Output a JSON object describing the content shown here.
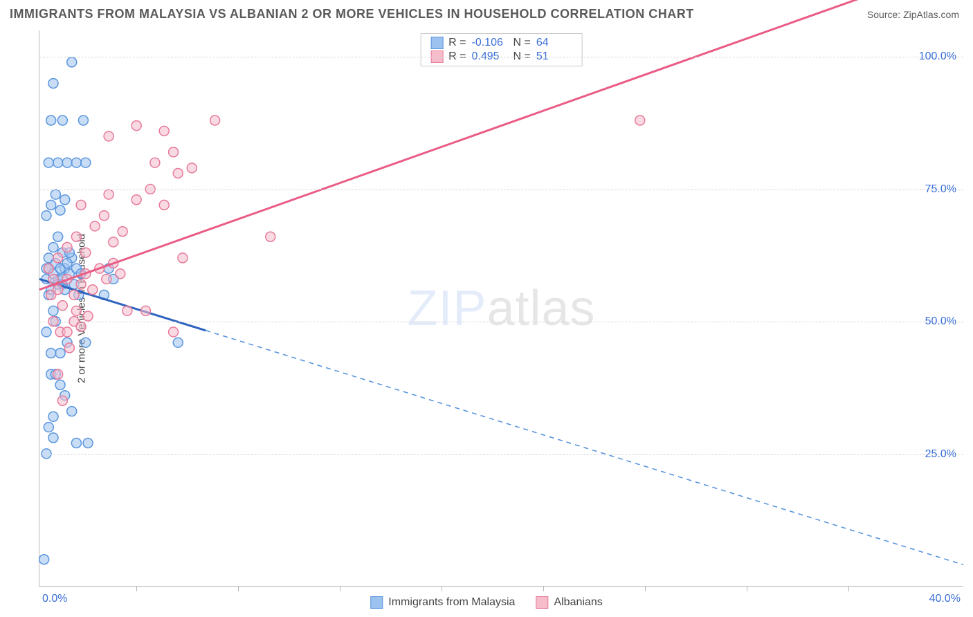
{
  "header": {
    "title": "IMMIGRANTS FROM MALAYSIA VS ALBANIAN 2 OR MORE VEHICLES IN HOUSEHOLD CORRELATION CHART",
    "source": "Source: ZipAtlas.com"
  },
  "chart": {
    "type": "scatter",
    "ylabel": "2 or more Vehicles in Household",
    "watermark": {
      "part1": "ZIP",
      "part2": "atlas"
    },
    "xlim": [
      0,
      40
    ],
    "ylim": [
      0,
      105
    ],
    "xtick_label_left": "0.0%",
    "xtick_label_right": "40.0%",
    "xtick_positions_pct": [
      10.5,
      21.5,
      32.5,
      43.5,
      54.5,
      65.5,
      76.5,
      87.5
    ],
    "ygrid": [
      {
        "v": 25,
        "label": "25.0%"
      },
      {
        "v": 50,
        "label": "50.0%"
      },
      {
        "v": 75,
        "label": "75.0%"
      },
      {
        "v": 100,
        "label": "100.0%"
      }
    ],
    "series": [
      {
        "name": "Immigrants from Malaysia",
        "color_fill": "#9cc2ef",
        "color_stroke": "#5a95de",
        "line_solid_color": "#2e63c0",
        "line_dash_color": "#5a95de",
        "marker_r": 7,
        "R": "-0.106",
        "N": "64",
        "trend": {
          "x1": 0,
          "y1": 58,
          "x2": 40,
          "y2": 4,
          "solid_until_x": 7.2
        },
        "points": [
          [
            1.4,
            99
          ],
          [
            0.6,
            32
          ],
          [
            0.3,
            60
          ],
          [
            0.5,
            40
          ],
          [
            0.9,
            44
          ],
          [
            1.2,
            46
          ],
          [
            2.0,
            46
          ],
          [
            0.4,
            55
          ],
          [
            0.6,
            52
          ],
          [
            0.7,
            50
          ],
          [
            0.8,
            58
          ],
          [
            1.0,
            57
          ],
          [
            1.1,
            60
          ],
          [
            1.3,
            59
          ],
          [
            0.4,
            62
          ],
          [
            0.6,
            64
          ],
          [
            0.8,
            66
          ],
          [
            1.0,
            63
          ],
          [
            1.4,
            62
          ],
          [
            1.6,
            60
          ],
          [
            1.8,
            59
          ],
          [
            0.3,
            70
          ],
          [
            0.5,
            72
          ],
          [
            0.7,
            74
          ],
          [
            0.9,
            71
          ],
          [
            1.1,
            73
          ],
          [
            0.4,
            80
          ],
          [
            0.8,
            80
          ],
          [
            1.2,
            80
          ],
          [
            1.6,
            80
          ],
          [
            2.0,
            80
          ],
          [
            0.5,
            88
          ],
          [
            1.0,
            88
          ],
          [
            1.9,
            88
          ],
          [
            0.6,
            95
          ],
          [
            0.3,
            48
          ],
          [
            0.5,
            44
          ],
          [
            0.7,
            40
          ],
          [
            0.9,
            38
          ],
          [
            1.1,
            36
          ],
          [
            0.4,
            30
          ],
          [
            0.6,
            28
          ],
          [
            0.3,
            25
          ],
          [
            1.6,
            27
          ],
          [
            2.1,
            27
          ],
          [
            1.4,
            33
          ],
          [
            2.8,
            55
          ],
          [
            3.0,
            60
          ],
          [
            3.2,
            58
          ],
          [
            0.2,
            5
          ],
          [
            0.3,
            58
          ],
          [
            0.4,
            60
          ],
          [
            0.5,
            56
          ],
          [
            0.6,
            59
          ],
          [
            0.7,
            61
          ],
          [
            0.8,
            57
          ],
          [
            0.9,
            60
          ],
          [
            1.0,
            58
          ],
          [
            1.1,
            56
          ],
          [
            1.2,
            61
          ],
          [
            1.3,
            63
          ],
          [
            1.5,
            57
          ],
          [
            1.7,
            55
          ],
          [
            6.0,
            46
          ]
        ]
      },
      {
        "name": "Albanians",
        "color_fill": "#f6bcca",
        "color_stroke": "#e77a9a",
        "line_solid_color": "#ea5c86",
        "line_dash_color": "#e77a9a",
        "marker_r": 7,
        "R": "0.495",
        "N": "51",
        "trend": {
          "x1": 0,
          "y1": 56,
          "x2": 40,
          "y2": 118,
          "solid_until_x": 40
        },
        "points": [
          [
            0.5,
            55
          ],
          [
            0.8,
            56
          ],
          [
            1.0,
            53
          ],
          [
            1.2,
            58
          ],
          [
            1.5,
            55
          ],
          [
            1.8,
            57
          ],
          [
            2.0,
            59
          ],
          [
            2.3,
            56
          ],
          [
            2.6,
            60
          ],
          [
            2.9,
            58
          ],
          [
            3.2,
            61
          ],
          [
            3.5,
            59
          ],
          [
            0.6,
            50
          ],
          [
            0.9,
            48
          ],
          [
            1.2,
            48
          ],
          [
            1.5,
            50
          ],
          [
            1.8,
            49
          ],
          [
            2.1,
            51
          ],
          [
            3.8,
            52
          ],
          [
            4.6,
            52
          ],
          [
            5.8,
            48
          ],
          [
            0.8,
            62
          ],
          [
            1.2,
            64
          ],
          [
            1.6,
            66
          ],
          [
            2.0,
            63
          ],
          [
            2.4,
            68
          ],
          [
            2.8,
            70
          ],
          [
            3.2,
            65
          ],
          [
            3.6,
            67
          ],
          [
            4.2,
            73
          ],
          [
            4.8,
            75
          ],
          [
            5.4,
            72
          ],
          [
            6.0,
            78
          ],
          [
            5.0,
            80
          ],
          [
            5.8,
            82
          ],
          [
            6.6,
            79
          ],
          [
            3.0,
            85
          ],
          [
            4.2,
            87
          ],
          [
            5.4,
            86
          ],
          [
            7.6,
            88
          ],
          [
            10.0,
            66
          ],
          [
            26.0,
            88
          ],
          [
            0.4,
            60
          ],
          [
            0.6,
            58
          ],
          [
            0.8,
            40
          ],
          [
            1.0,
            35
          ],
          [
            1.3,
            45
          ],
          [
            1.6,
            52
          ],
          [
            6.2,
            62
          ],
          [
            3.0,
            74
          ],
          [
            1.8,
            72
          ]
        ]
      }
    ],
    "legend_bottom": [
      {
        "label": "Immigrants from Malaysia",
        "fill": "#9cc2ef",
        "stroke": "#5a95de"
      },
      {
        "label": "Albanians",
        "fill": "#f6bcca",
        "stroke": "#e77a9a"
      }
    ]
  }
}
